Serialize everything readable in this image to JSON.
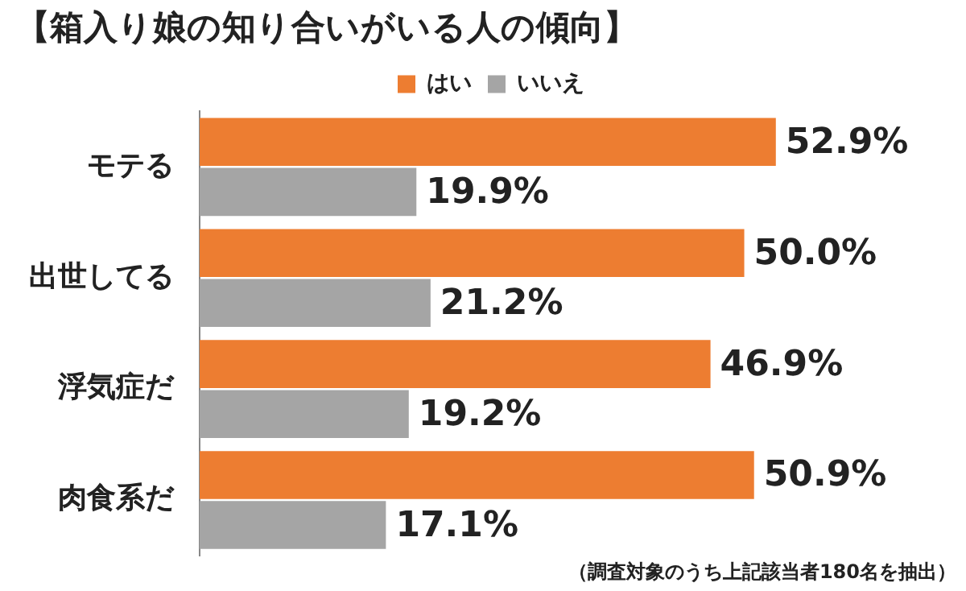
{
  "chart_data": {
    "type": "bar",
    "orientation": "horizontal",
    "title": "【箱入り娘の知り合いがいる人の傾向】",
    "categories": [
      "モテる",
      "出世してる",
      "浮気症だ",
      "肉食系だ"
    ],
    "series": [
      {
        "name": "はい",
        "color": "#ed7d31",
        "values": [
          52.9,
          50.0,
          46.9,
          50.9
        ],
        "value_labels": [
          "52.9%",
          "50.0%",
          "46.9%",
          "50.9%"
        ]
      },
      {
        "name": "いいえ",
        "color": "#a5a5a5",
        "values": [
          19.9,
          21.2,
          19.2,
          17.1
        ],
        "value_labels": [
          "19.9%",
          "21.2%",
          "19.2%",
          "17.1%"
        ]
      }
    ],
    "legend": "top",
    "annotations": [
      "（調査対象のうち上記該当者180名を抽出）"
    ]
  }
}
